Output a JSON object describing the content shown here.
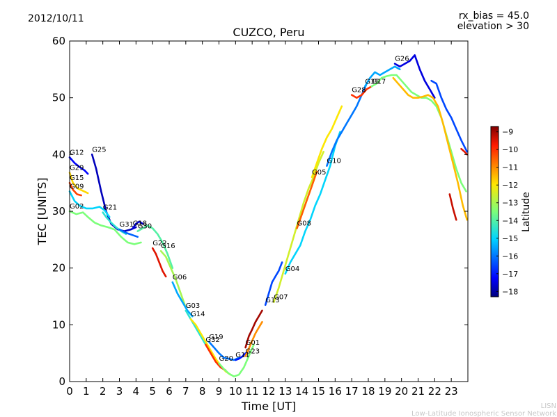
{
  "header": {
    "date": "2012/10/11",
    "rx_bias": "rx_bias = 45.0",
    "elevation": "elevation > 30"
  },
  "footer": {
    "logo_text": "LISN",
    "network_name": "Low-Latitude Ionospheric Sensor Network"
  },
  "chart_data": {
    "type": "line",
    "title": "CUZCO, Peru",
    "xlabel": "Time [UT]",
    "ylabel": "TEC [UNITS]",
    "xlim": [
      0,
      24
    ],
    "ylim": [
      0,
      60
    ],
    "x_ticks": [
      0,
      1,
      2,
      3,
      4,
      5,
      6,
      7,
      8,
      9,
      10,
      11,
      12,
      13,
      14,
      15,
      16,
      17,
      18,
      19,
      20,
      21,
      22,
      23
    ],
    "y_ticks": [
      0,
      10,
      20,
      30,
      40,
      50,
      60
    ],
    "grid": false,
    "legend": "none",
    "colorbar": {
      "label": "Latitude",
      "min": -18.3,
      "max": -8.7,
      "ticks": [
        -9,
        -10,
        -11,
        -12,
        -13,
        -14,
        -15,
        -16,
        -17,
        -18
      ]
    },
    "series": [
      {
        "name": "G12",
        "lat": -17.2,
        "x": [
          0.0,
          0.3,
          0.6,
          0.9,
          1.1
        ],
        "y": [
          39.5,
          38.5,
          37.8,
          37.2,
          36.6
        ]
      },
      {
        "name": "G25",
        "lat": -17.8,
        "x": [
          1.35,
          1.6,
          1.9,
          2.2,
          2.5,
          2.9,
          3.3,
          3.7,
          4.0
        ],
        "y": [
          40.0,
          37.5,
          33.5,
          30.0,
          27.8,
          26.8,
          26.5,
          26.8,
          27.2
        ]
      },
      {
        "name": "G29",
        "lat": -11.8,
        "x": [
          0.0,
          0.2,
          0.5,
          0.8,
          1.1
        ],
        "y": [
          36.8,
          35.0,
          34.0,
          33.6,
          33.2
        ]
      },
      {
        "name": "G15",
        "lat": -10.2,
        "x": [
          0.0,
          0.2,
          0.45,
          0.7
        ],
        "y": [
          35.0,
          33.8,
          33.0,
          32.8
        ]
      },
      {
        "name": "G09",
        "lat": -15.0,
        "x": [
          0.0,
          0.3,
          0.6,
          1.0,
          1.4,
          1.8,
          2.1,
          2.4
        ],
        "y": [
          33.5,
          31.8,
          31.0,
          30.5,
          30.5,
          30.8,
          30.2,
          29.0
        ]
      },
      {
        "name": "G02",
        "lat": -13.5,
        "x": [
          0.0,
          0.4,
          0.8,
          1.1,
          1.5,
          1.9,
          2.3,
          2.7,
          3.1,
          3.5,
          3.9,
          4.3
        ],
        "y": [
          30.0,
          29.5,
          29.8,
          29.0,
          28.0,
          27.5,
          27.2,
          26.8,
          25.5,
          24.5,
          24.2,
          24.5
        ]
      },
      {
        "name": "G21",
        "lat": -14.5,
        "x": [
          2.0,
          2.2,
          2.5,
          2.8,
          3.1,
          3.4
        ],
        "y": [
          29.8,
          29.0,
          28.0,
          27.2,
          26.5,
          26.0
        ]
      },
      {
        "name": "G31",
        "lat": -16.2,
        "x": [
          3.0,
          3.4,
          3.8,
          4.1
        ],
        "y": [
          26.8,
          26.2,
          25.8,
          25.5
        ]
      },
      {
        "name": "G18",
        "lat": -17.5,
        "x": [
          3.8,
          4.0,
          4.2,
          4.4
        ],
        "y": [
          27.0,
          27.8,
          28.2,
          27.8
        ]
      },
      {
        "name": "G30",
        "lat": -14.0,
        "x": [
          4.1,
          4.4,
          4.7,
          5.0,
          5.3,
          5.6,
          5.9,
          6.2
        ],
        "y": [
          26.5,
          27.0,
          27.5,
          27.0,
          26.0,
          24.5,
          22.5,
          20.0
        ]
      },
      {
        "name": "G22",
        "lat": -9.5,
        "x": [
          5.0,
          5.2,
          5.4,
          5.6,
          5.8
        ],
        "y": [
          23.5,
          22.5,
          21.0,
          19.5,
          18.5
        ]
      },
      {
        "name": "G16",
        "lat": -13.0,
        "x": [
          5.5,
          5.8,
          6.1,
          6.4,
          6.7,
          7.0
        ],
        "y": [
          23.0,
          22.0,
          20.0,
          18.0,
          15.5,
          13.0
        ]
      },
      {
        "name": "G06",
        "lat": -15.5,
        "x": [
          6.2,
          6.5,
          6.8,
          7.1,
          7.4
        ],
        "y": [
          17.5,
          15.5,
          14.0,
          12.5,
          11.5
        ]
      },
      {
        "name": "G03",
        "lat": -14.5,
        "x": [
          7.0,
          7.3,
          7.6,
          7.9,
          8.2
        ],
        "y": [
          12.5,
          11.0,
          9.5,
          8.0,
          6.5
        ]
      },
      {
        "name": "G14",
        "lat": -12.0,
        "x": [
          7.3,
          7.6,
          7.9,
          8.2,
          8.5,
          8.8,
          9.1,
          9.4,
          9.7
        ],
        "y": [
          11.0,
          10.0,
          8.5,
          7.0,
          5.5,
          4.0,
          2.8,
          1.8,
          1.2
        ]
      },
      {
        "name": "G19",
        "lat": -16.0,
        "x": [
          8.4,
          8.7,
          9.0,
          9.3,
          9.6,
          9.9,
          10.2
        ],
        "y": [
          7.0,
          6.0,
          5.0,
          4.2,
          4.0,
          3.8,
          4.2
        ]
      },
      {
        "name": "G32",
        "lat": -10.0,
        "x": [
          8.2,
          8.5,
          8.8,
          9.1,
          9.4
        ],
        "y": [
          6.5,
          5.0,
          3.5,
          2.5,
          2.0
        ]
      },
      {
        "name": "G11",
        "lat": -17.0,
        "x": [
          10.0,
          10.2,
          10.4,
          10.6
        ],
        "y": [
          3.8,
          4.0,
          4.4,
          5.0
        ]
      },
      {
        "name": "G20",
        "lat": -13.5,
        "x": [
          9.0,
          9.3,
          9.6,
          9.9,
          10.2,
          10.5,
          10.8,
          11.1
        ],
        "y": [
          3.2,
          2.2,
          1.4,
          0.9,
          1.2,
          2.5,
          4.5,
          6.5
        ]
      },
      {
        "name": "G23",
        "lat": -11.0,
        "x": [
          10.6,
          10.8,
          11.0,
          11.2,
          11.4,
          11.6
        ],
        "y": [
          4.5,
          5.8,
          7.2,
          8.5,
          9.5,
          10.5
        ]
      },
      {
        "name": "G01",
        "lat": -9.0,
        "x": [
          10.6,
          10.8,
          11.0,
          11.2,
          11.4,
          11.6
        ],
        "y": [
          6.0,
          8.0,
          9.2,
          10.5,
          11.5,
          12.5
        ]
      },
      {
        "name": "G13",
        "lat": -16.5,
        "x": [
          11.8,
          12.0,
          12.2,
          12.4,
          12.6,
          12.8
        ],
        "y": [
          13.5,
          15.5,
          17.5,
          18.5,
          19.5,
          21.0
        ]
      },
      {
        "name": "G07",
        "lat": -12.5,
        "x": [
          12.3,
          12.6,
          12.9,
          13.2,
          13.5,
          13.8,
          14.1,
          14.4,
          14.7,
          15.0,
          15.3
        ],
        "y": [
          14.0,
          16.5,
          19.5,
          22.5,
          25.5,
          28.5,
          31.5,
          34.0,
          36.0,
          38.5,
          40.5
        ]
      },
      {
        "name": "G04",
        "lat": -15.0,
        "x": [
          13.0,
          13.3,
          13.6,
          13.9,
          14.2,
          14.5,
          14.8,
          15.1,
          15.4,
          15.7,
          16.0,
          16.3
        ],
        "y": [
          19.0,
          21.0,
          22.5,
          24.0,
          26.5,
          28.5,
          31.0,
          33.0,
          35.5,
          38.0,
          41.5,
          44.0
        ]
      },
      {
        "name": "G05",
        "lat": -12.0,
        "x": [
          14.6,
          14.9,
          15.2,
          15.5,
          15.8,
          16.1,
          16.4
        ],
        "y": [
          36.0,
          38.5,
          41.0,
          43.0,
          44.5,
          46.5,
          48.5
        ]
      },
      {
        "name": "G08",
        "lat": -10.5,
        "x": [
          13.7,
          14.0,
          14.3,
          14.6,
          14.9
        ],
        "y": [
          27.0,
          29.5,
          32.0,
          34.5,
          37.0
        ]
      },
      {
        "name": "G10",
        "lat": -16.0,
        "x": [
          15.5,
          15.8,
          16.1,
          16.4,
          16.7,
          17.0,
          17.3,
          17.6,
          17.9
        ],
        "y": [
          38.0,
          40.5,
          42.5,
          44.0,
          45.5,
          47.0,
          48.5,
          50.5,
          52.5
        ]
      },
      {
        "name": "G28",
        "lat": -10.0,
        "x": [
          17.0,
          17.3,
          17.6,
          17.9,
          18.2
        ],
        "y": [
          50.5,
          50.0,
          50.5,
          51.5,
          52.0
        ]
      },
      {
        "name": "G35",
        "lat": -15.5,
        "x": [
          17.8,
          18.1,
          18.4,
          18.7,
          19.0,
          19.3,
          19.6,
          19.9
        ],
        "y": [
          52.0,
          53.5,
          54.5,
          54.0,
          54.5,
          55.0,
          55.5,
          55.0
        ]
      },
      {
        "name": "G26",
        "lat": -17.5,
        "x": [
          19.6,
          19.9,
          20.2,
          20.5,
          20.8,
          21.1,
          21.4,
          21.7,
          22.0
        ],
        "y": [
          56.0,
          55.5,
          56.0,
          56.5,
          57.5,
          55.0,
          53.0,
          51.5,
          50.0
        ]
      },
      {
        "name": "G17",
        "lat": -13.5,
        "x": [
          18.2,
          18.5,
          18.8,
          19.1,
          19.4,
          19.7,
          20.0,
          20.3,
          20.6,
          20.9,
          21.2,
          21.5,
          21.8,
          22.1,
          22.4,
          22.7,
          23.0,
          23.3,
          23.6,
          23.9
        ],
        "y": [
          52.0,
          52.5,
          53.5,
          53.8,
          54.0,
          54.0,
          53.0,
          52.0,
          51.0,
          50.5,
          50.0,
          50.0,
          49.5,
          48.5,
          46.5,
          43.5,
          40.5,
          37.5,
          35.0,
          33.5
        ]
      },
      {
        "name": "",
        "lat": -11.5,
        "x": [
          19.5,
          19.8,
          20.1,
          20.4,
          20.7,
          21.0,
          21.3,
          21.6,
          21.9,
          22.2,
          22.5,
          22.8,
          23.1,
          23.4,
          23.7,
          23.95
        ],
        "y": [
          53.5,
          52.5,
          51.5,
          50.5,
          50.0,
          50.0,
          50.2,
          50.5,
          50.0,
          48.5,
          45.5,
          42.0,
          38.5,
          35.0,
          31.0,
          28.5
        ]
      },
      {
        "name": "",
        "lat": -16.5,
        "x": [
          21.8,
          22.1,
          22.4,
          22.7,
          23.0,
          23.3,
          23.6,
          23.95
        ],
        "y": [
          53.0,
          52.5,
          50.0,
          48.0,
          46.5,
          44.5,
          42.5,
          40.5
        ]
      },
      {
        "name": "",
        "lat": -9.3,
        "x": [
          22.9,
          23.1,
          23.3
        ],
        "y": [
          33.0,
          30.5,
          28.5
        ]
      },
      {
        "name": "",
        "lat": -9.5,
        "x": [
          23.6,
          23.8,
          23.95
        ],
        "y": [
          41.0,
          40.5,
          40.0
        ]
      }
    ]
  }
}
